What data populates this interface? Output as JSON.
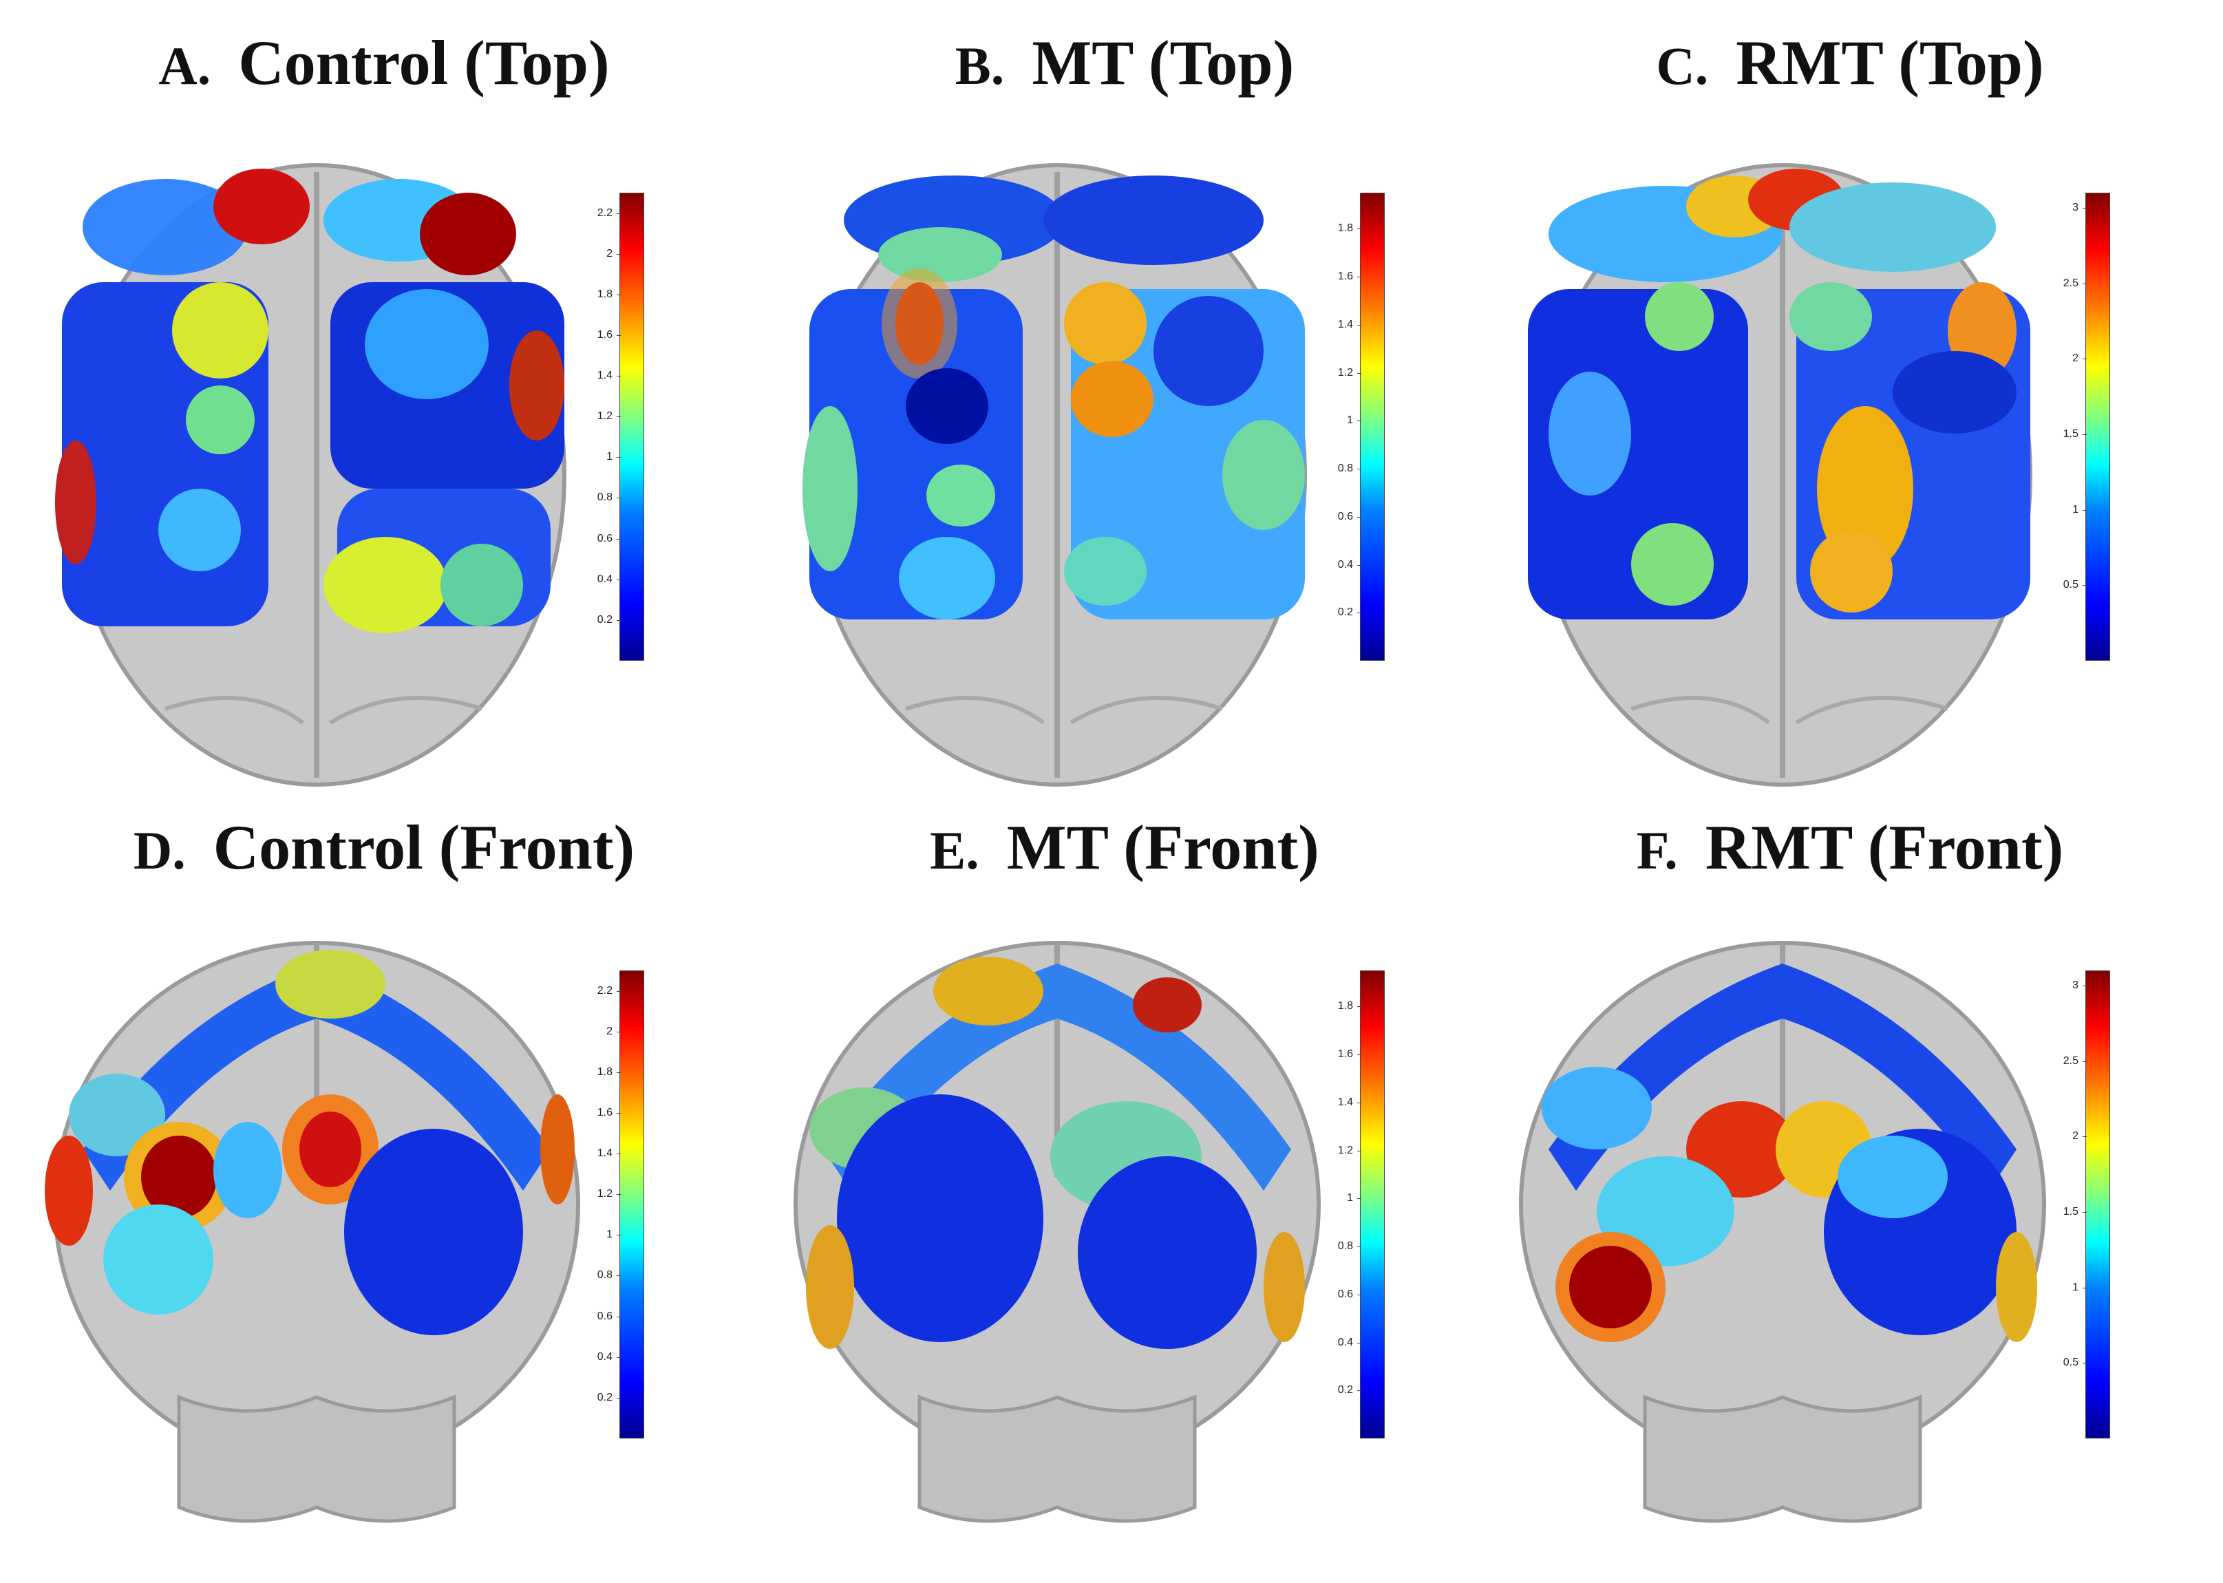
{
  "panels": [
    {
      "id": "a",
      "letter": "A.",
      "title": "Control (Top)",
      "view": "top",
      "ticks": [
        "2.2",
        "2",
        "1.8",
        "1.6",
        "1.4",
        "1.2",
        "1",
        "0.8",
        "0.6",
        "0.4",
        "0.2"
      ],
      "cmax": 2.3
    },
    {
      "id": "b",
      "letter": "B.",
      "title": "MT (Top)",
      "view": "top",
      "ticks": [
        "1.8",
        "1.6",
        "1.4",
        "1.2",
        "1",
        "0.8",
        "0.6",
        "0.4",
        "0.2"
      ],
      "cmax": 1.95
    },
    {
      "id": "c",
      "letter": "C.",
      "title": "RMT (Top)",
      "view": "top",
      "ticks": [
        "3",
        "2.5",
        "2",
        "1.5",
        "1",
        "0.5"
      ],
      "cmax": 3.1
    },
    {
      "id": "d",
      "letter": "D.",
      "title": "Control (Front)",
      "view": "front",
      "ticks": [
        "2.2",
        "2",
        "1.8",
        "1.6",
        "1.4",
        "1.2",
        "1",
        "0.8",
        "0.6",
        "0.4",
        "0.2"
      ],
      "cmax": 2.3
    },
    {
      "id": "e",
      "letter": "E.",
      "title": "MT (Front)",
      "view": "front",
      "ticks": [
        "1.8",
        "1.6",
        "1.4",
        "1.2",
        "1",
        "0.8",
        "0.6",
        "0.4",
        "0.2"
      ],
      "cmax": 1.95
    },
    {
      "id": "f",
      "letter": "F.",
      "title": "RMT (Front)",
      "view": "front",
      "ticks": [
        "3",
        "2.5",
        "2",
        "1.5",
        "1",
        "0.5"
      ],
      "cmax": 3.1
    }
  ]
}
